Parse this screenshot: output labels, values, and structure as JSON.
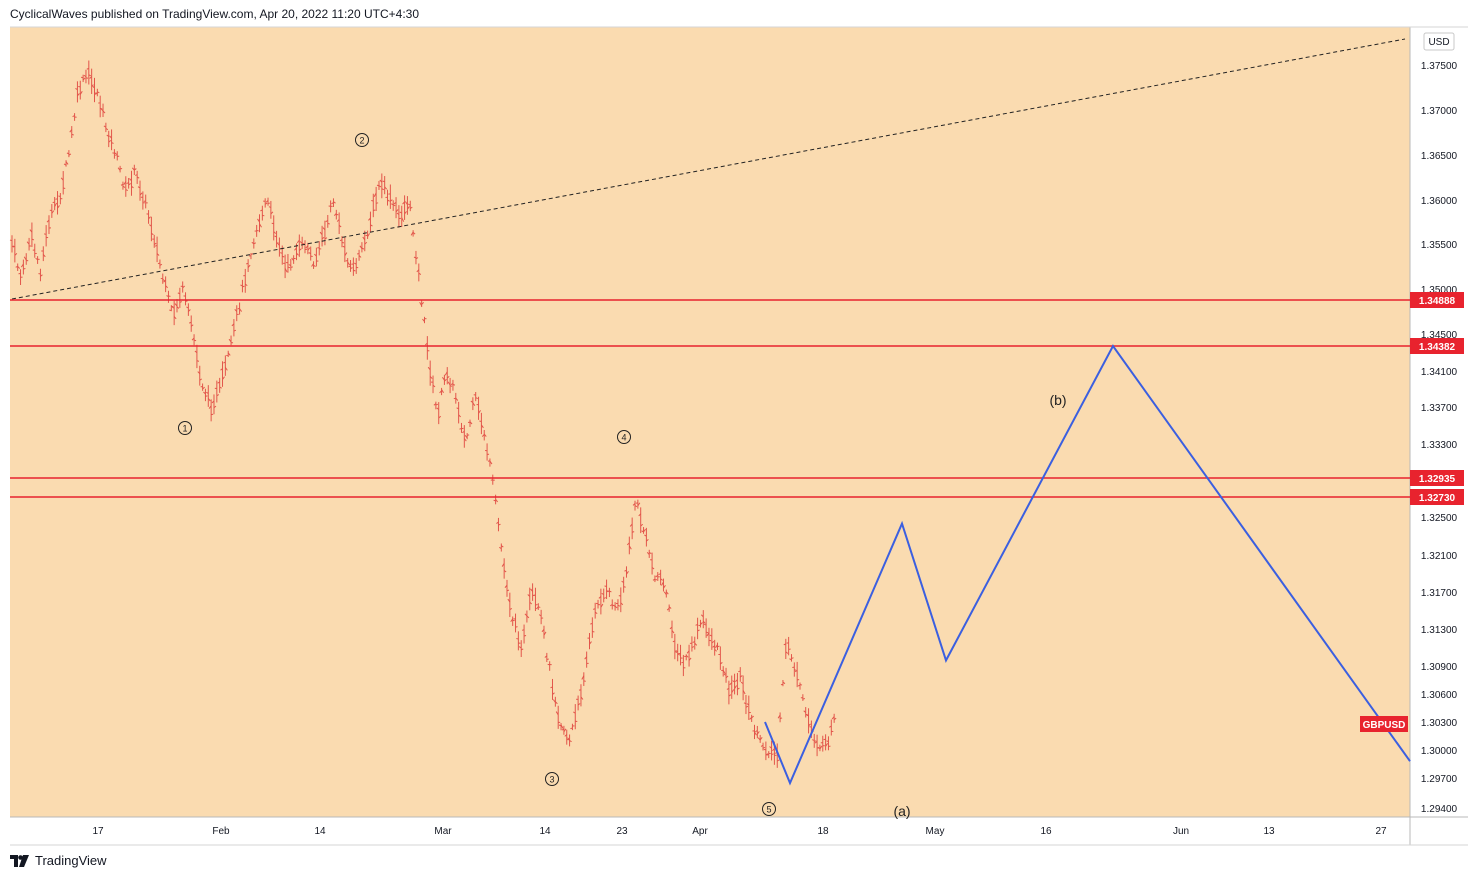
{
  "header": {
    "published": "CyclicalWaves published on TradingView.com, Apr 20, 2022 11:20 UTC+4:30"
  },
  "footer": {
    "brand": "TradingView"
  },
  "chart_data": {
    "type": "candlestick",
    "symbol": "GBPUSD",
    "currency": "USD",
    "colors": {
      "background": "#fadbb0",
      "bar": "#e2554a",
      "level": "#e8232e",
      "projection": "#3b5fe0",
      "trendline": "#222222"
    },
    "y_ticks": [
      "1.37500",
      "1.37000",
      "1.36500",
      "1.36000",
      "1.35500",
      "1.35000",
      "1.34500",
      "1.34100",
      "1.33700",
      "1.33300",
      "1.32500",
      "1.32100",
      "1.31700",
      "1.31300",
      "1.30900",
      "1.30600",
      "1.30300",
      "1.30000",
      "1.29700",
      "1.29400"
    ],
    "x_ticks": [
      "17",
      "Feb",
      "14",
      "Mar",
      "14",
      "23",
      "Apr",
      "18",
      "May",
      "16",
      "Jun",
      "13",
      "27"
    ],
    "levels": [
      {
        "label": "1.34888",
        "value": 1.34888
      },
      {
        "label": "1.34382",
        "value": 1.34382
      },
      {
        "label": "1.32935",
        "value": 1.32935
      },
      {
        "label": "1.32730",
        "value": 1.3273
      }
    ],
    "wave_labels": [
      {
        "text": "1"
      },
      {
        "text": "2"
      },
      {
        "text": "3"
      },
      {
        "text": "4"
      },
      {
        "text": "5"
      }
    ],
    "projection_labels": [
      "(a)",
      "(b)"
    ],
    "symbol_tag": "GBPUSD",
    "price_path": [
      [
        0,
        1.355
      ],
      [
        1,
        1.351
      ],
      [
        2,
        1.356
      ],
      [
        3,
        1.352
      ],
      [
        4,
        1.358
      ],
      [
        5,
        1.36
      ],
      [
        6,
        1.365
      ],
      [
        7,
        1.372
      ],
      [
        8,
        1.374
      ],
      [
        9,
        1.372
      ],
      [
        10,
        1.368
      ],
      [
        11,
        1.365
      ],
      [
        12,
        1.361
      ],
      [
        13,
        1.363
      ],
      [
        14,
        1.36
      ],
      [
        15,
        1.356
      ],
      [
        16,
        1.351
      ],
      [
        17,
        1.347
      ],
      [
        18,
        1.35
      ],
      [
        19,
        1.346
      ],
      [
        20,
        1.34
      ],
      [
        21,
        1.337
      ],
      [
        22,
        1.339
      ],
      [
        23,
        1.343
      ],
      [
        24,
        1.348
      ],
      [
        25,
        1.353
      ],
      [
        26,
        1.357
      ],
      [
        27,
        1.36
      ],
      [
        28,
        1.356
      ],
      [
        29,
        1.352
      ],
      [
        30,
        1.354
      ],
      [
        31,
        1.355
      ],
      [
        32,
        1.353
      ],
      [
        33,
        1.356
      ],
      [
        34,
        1.36
      ],
      [
        35,
        1.355
      ],
      [
        36,
        1.352
      ],
      [
        37,
        1.354
      ],
      [
        38,
        1.358
      ],
      [
        39,
        1.362
      ],
      [
        40,
        1.36
      ],
      [
        41,
        1.358
      ],
      [
        42,
        1.36
      ],
      [
        43,
        1.352
      ],
      [
        44,
        1.343
      ],
      [
        45,
        1.336
      ],
      [
        46,
        1.341
      ],
      [
        47,
        1.338
      ],
      [
        48,
        1.333
      ],
      [
        49,
        1.338
      ],
      [
        50,
        1.334
      ],
      [
        51,
        1.328
      ],
      [
        52,
        1.32
      ],
      [
        53,
        1.314
      ],
      [
        54,
        1.311
      ],
      [
        55,
        1.317
      ],
      [
        56,
        1.314
      ],
      [
        57,
        1.308
      ],
      [
        58,
        1.303
      ],
      [
        59,
        1.301
      ],
      [
        60,
        1.305
      ],
      [
        61,
        1.311
      ],
      [
        62,
        1.316
      ],
      [
        63,
        1.317
      ],
      [
        64,
        1.315
      ],
      [
        65,
        1.319
      ],
      [
        66,
        1.327
      ],
      [
        67,
        1.323
      ],
      [
        68,
        1.319
      ],
      [
        69,
        1.318
      ],
      [
        70,
        1.312
      ],
      [
        71,
        1.309
      ],
      [
        72,
        1.311
      ],
      [
        73,
        1.314
      ],
      [
        74,
        1.312
      ],
      [
        75,
        1.31
      ],
      [
        76,
        1.306
      ],
      [
        77,
        1.308
      ],
      [
        78,
        1.304
      ],
      [
        79,
        1.301
      ],
      [
        80,
        1.3
      ],
      [
        81,
        1.2995
      ],
      [
        82,
        1.312
      ],
      [
        83,
        1.308
      ],
      [
        84,
        1.304
      ],
      [
        85,
        1.301
      ],
      [
        86,
        1.3
      ],
      [
        87,
        1.303
      ]
    ],
    "projection_path": [
      1.303,
      1.2965,
      1.3243,
      1.3096,
      1.34382,
      1.2988
    ]
  }
}
